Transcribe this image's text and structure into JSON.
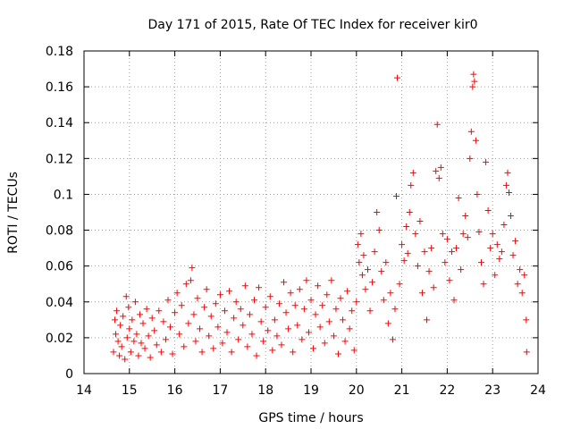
{
  "chart_data": {
    "type": "scatter",
    "title": "Day 171 of 2015, Rate Of TEC Index for receiver kir0",
    "xlabel": "GPS time / hours",
    "ylabel": "ROTI / TECUs",
    "xlim": [
      14,
      24
    ],
    "ylim": [
      0,
      0.18
    ],
    "grid": true,
    "x_ticks": [
      "14",
      "15",
      "16",
      "17",
      "18",
      "19",
      "20",
      "21",
      "22",
      "23",
      "24"
    ],
    "y_ticks": [
      "0",
      "0.02",
      "0.04",
      "0.06",
      "0.08",
      "0.1",
      "0.12",
      "0.14",
      "0.16",
      "0.18"
    ],
    "marker": "+",
    "color": "#ff0000",
    "series": [
      {
        "name": "ROTI",
        "points": [
          [
            14.65,
            0.012
          ],
          [
            14.68,
            0.03
          ],
          [
            14.7,
            0.022
          ],
          [
            14.72,
            0.035
          ],
          [
            14.75,
            0.018
          ],
          [
            14.78,
            0.01
          ],
          [
            14.8,
            0.027
          ],
          [
            14.83,
            0.015
          ],
          [
            14.86,
            0.032
          ],
          [
            14.9,
            0.008
          ],
          [
            14.93,
            0.043
          ],
          [
            14.95,
            0.02
          ],
          [
            14.98,
            0.037
          ],
          [
            15.0,
            0.025
          ],
          [
            15.03,
            0.012
          ],
          [
            15.06,
            0.03
          ],
          [
            15.1,
            0.018
          ],
          [
            15.13,
            0.04
          ],
          [
            15.16,
            0.022
          ],
          [
            15.2,
            0.01
          ],
          [
            15.23,
            0.033
          ],
          [
            15.26,
            0.017
          ],
          [
            15.3,
            0.028
          ],
          [
            15.34,
            0.014
          ],
          [
            15.38,
            0.036
          ],
          [
            15.42,
            0.021
          ],
          [
            15.46,
            0.009
          ],
          [
            15.5,
            0.031
          ],
          [
            15.55,
            0.024
          ],
          [
            15.6,
            0.016
          ],
          [
            15.65,
            0.035
          ],
          [
            15.7,
            0.012
          ],
          [
            15.75,
            0.029
          ],
          [
            15.8,
            0.019
          ],
          [
            15.85,
            0.041
          ],
          [
            15.9,
            0.026
          ],
          [
            15.95,
            0.011
          ],
          [
            16.0,
            0.034
          ],
          [
            16.05,
            0.045
          ],
          [
            16.1,
            0.022
          ],
          [
            16.15,
            0.038
          ],
          [
            16.2,
            0.015
          ],
          [
            16.25,
            0.05
          ],
          [
            16.3,
            0.028
          ],
          [
            16.35,
            0.052
          ],
          [
            16.38,
            0.059
          ],
          [
            16.42,
            0.033
          ],
          [
            16.46,
            0.018
          ],
          [
            16.5,
            0.042
          ],
          [
            16.55,
            0.025
          ],
          [
            16.6,
            0.012
          ],
          [
            16.65,
            0.037
          ],
          [
            16.7,
            0.047
          ],
          [
            16.75,
            0.021
          ],
          [
            16.8,
            0.032
          ],
          [
            16.85,
            0.014
          ],
          [
            16.9,
            0.039
          ],
          [
            16.95,
            0.026
          ],
          [
            17.0,
            0.044
          ],
          [
            17.05,
            0.017
          ],
          [
            17.1,
            0.035
          ],
          [
            17.15,
            0.023
          ],
          [
            17.2,
            0.046
          ],
          [
            17.25,
            0.012
          ],
          [
            17.3,
            0.031
          ],
          [
            17.35,
            0.04
          ],
          [
            17.4,
            0.019
          ],
          [
            17.45,
            0.036
          ],
          [
            17.5,
            0.027
          ],
          [
            17.55,
            0.049
          ],
          [
            17.6,
            0.015
          ],
          [
            17.65,
            0.033
          ],
          [
            17.7,
            0.022
          ],
          [
            17.75,
            0.041
          ],
          [
            17.8,
            0.01
          ],
          [
            17.85,
            0.048
          ],
          [
            17.9,
            0.029
          ],
          [
            17.95,
            0.018
          ],
          [
            18.0,
            0.037
          ],
          [
            18.05,
            0.024
          ],
          [
            18.1,
            0.043
          ],
          [
            18.15,
            0.013
          ],
          [
            18.2,
            0.03
          ],
          [
            18.25,
            0.021
          ],
          [
            18.3,
            0.039
          ],
          [
            18.35,
            0.016
          ],
          [
            18.4,
            0.051
          ],
          [
            18.45,
            0.034
          ],
          [
            18.5,
            0.025
          ],
          [
            18.55,
            0.045
          ],
          [
            18.6,
            0.012
          ],
          [
            18.65,
            0.038
          ],
          [
            18.7,
            0.027
          ],
          [
            18.75,
            0.047
          ],
          [
            18.8,
            0.019
          ],
          [
            18.85,
            0.036
          ],
          [
            18.9,
            0.052
          ],
          [
            18.95,
            0.023
          ],
          [
            19.0,
            0.041
          ],
          [
            19.05,
            0.014
          ],
          [
            19.1,
            0.033
          ],
          [
            19.15,
            0.049
          ],
          [
            19.2,
            0.026
          ],
          [
            19.25,
            0.038
          ],
          [
            19.3,
            0.017
          ],
          [
            19.35,
            0.044
          ],
          [
            19.4,
            0.029
          ],
          [
            19.45,
            0.052
          ],
          [
            19.5,
            0.021
          ],
          [
            19.55,
            0.036
          ],
          [
            19.6,
            0.011
          ],
          [
            19.65,
            0.042
          ],
          [
            19.7,
            0.03
          ],
          [
            19.75,
            0.018
          ],
          [
            19.8,
            0.046
          ],
          [
            19.85,
            0.025
          ],
          [
            19.9,
            0.035
          ],
          [
            19.95,
            0.013
          ],
          [
            20.0,
            0.04
          ],
          [
            20.03,
            0.072
          ],
          [
            20.06,
            0.062
          ],
          [
            20.1,
            0.078
          ],
          [
            20.13,
            0.055
          ],
          [
            20.16,
            0.066
          ],
          [
            20.2,
            0.047
          ],
          [
            20.25,
            0.058
          ],
          [
            20.3,
            0.035
          ],
          [
            20.35,
            0.051
          ],
          [
            20.4,
            0.068
          ],
          [
            20.45,
            0.09
          ],
          [
            20.5,
            0.08
          ],
          [
            20.55,
            0.057
          ],
          [
            20.6,
            0.041
          ],
          [
            20.65,
            0.062
          ],
          [
            20.7,
            0.028
          ],
          [
            20.75,
            0.045
          ],
          [
            20.8,
            0.019
          ],
          [
            20.85,
            0.036
          ],
          [
            20.88,
            0.099
          ],
          [
            20.9,
            0.165
          ],
          [
            20.95,
            0.05
          ],
          [
            21.0,
            0.072
          ],
          [
            21.05,
            0.063
          ],
          [
            21.1,
            0.082
          ],
          [
            21.13,
            0.067
          ],
          [
            21.17,
            0.09
          ],
          [
            21.2,
            0.105
          ],
          [
            21.25,
            0.112
          ],
          [
            21.3,
            0.078
          ],
          [
            21.35,
            0.06
          ],
          [
            21.4,
            0.085
          ],
          [
            21.45,
            0.045
          ],
          [
            21.5,
            0.068
          ],
          [
            21.55,
            0.03
          ],
          [
            21.6,
            0.057
          ],
          [
            21.65,
            0.07
          ],
          [
            21.7,
            0.048
          ],
          [
            21.75,
            0.113
          ],
          [
            21.78,
            0.139
          ],
          [
            21.82,
            0.109
          ],
          [
            21.86,
            0.115
          ],
          [
            21.9,
            0.078
          ],
          [
            21.95,
            0.062
          ],
          [
            22.0,
            0.075
          ],
          [
            22.05,
            0.052
          ],
          [
            22.1,
            0.068
          ],
          [
            22.15,
            0.041
          ],
          [
            22.2,
            0.07
          ],
          [
            22.25,
            0.098
          ],
          [
            22.3,
            0.058
          ],
          [
            22.35,
            0.078
          ],
          [
            22.4,
            0.088
          ],
          [
            22.45,
            0.076
          ],
          [
            22.5,
            0.12
          ],
          [
            22.53,
            0.135
          ],
          [
            22.56,
            0.16
          ],
          [
            22.58,
            0.167
          ],
          [
            22.6,
            0.163
          ],
          [
            22.63,
            0.13
          ],
          [
            22.66,
            0.1
          ],
          [
            22.7,
            0.079
          ],
          [
            22.75,
            0.062
          ],
          [
            22.8,
            0.05
          ],
          [
            22.85,
            0.118
          ],
          [
            22.9,
            0.091
          ],
          [
            22.95,
            0.07
          ],
          [
            23.0,
            0.078
          ],
          [
            23.05,
            0.055
          ],
          [
            23.1,
            0.072
          ],
          [
            23.15,
            0.064
          ],
          [
            23.2,
            0.068
          ],
          [
            23.25,
            0.083
          ],
          [
            23.3,
            0.105
          ],
          [
            23.33,
            0.112
          ],
          [
            23.36,
            0.101
          ],
          [
            23.4,
            0.088
          ],
          [
            23.45,
            0.066
          ],
          [
            23.5,
            0.074
          ],
          [
            23.55,
            0.05
          ],
          [
            23.6,
            0.058
          ],
          [
            23.65,
            0.045
          ],
          [
            23.7,
            0.055
          ],
          [
            23.74,
            0.03
          ],
          [
            23.75,
            0.012
          ]
        ]
      }
    ]
  }
}
